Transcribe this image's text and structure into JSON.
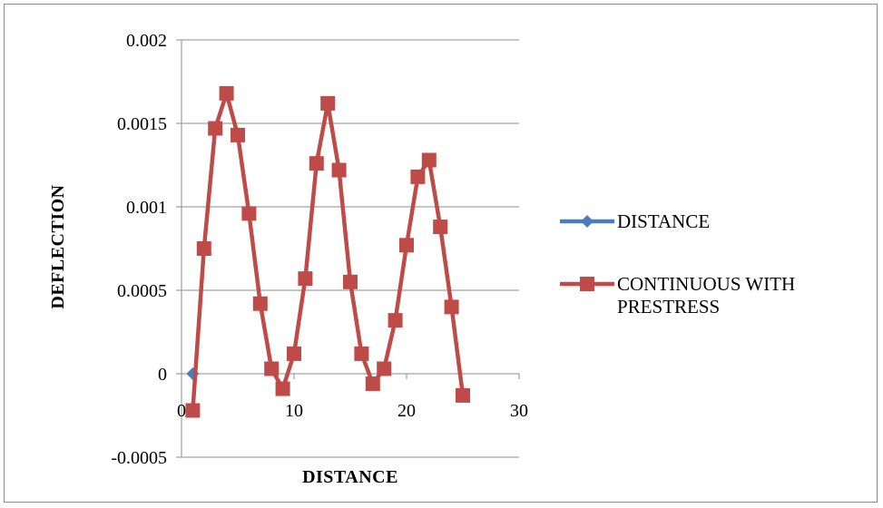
{
  "chart_data": {
    "type": "line",
    "xlabel": "DISTANCE",
    "ylabel": "DEFLECTION",
    "xlim": [
      0,
      30
    ],
    "ylim": [
      -0.0005,
      0.002
    ],
    "x_ticks": [
      "0",
      "10",
      "20",
      "30"
    ],
    "y_ticks": [
      "-0.0005",
      "0",
      "0.0005",
      "0.001",
      "0.0015",
      "0.002"
    ],
    "grid": "horizontal",
    "legend_position": "right",
    "series": [
      {
        "name": "DISTANCE",
        "color": "#4a7ebb",
        "marker": "diamond",
        "x": [
          1
        ],
        "y": [
          0
        ]
      },
      {
        "name": "CONTINUOUS WITH PRESTRESS",
        "color": "#be4b48",
        "marker": "square",
        "x": [
          1,
          2,
          3,
          4,
          5,
          6,
          7,
          8,
          9,
          10,
          11,
          12,
          13,
          14,
          15,
          16,
          17,
          18,
          19,
          20,
          21,
          22,
          23,
          24,
          25
        ],
        "y": [
          -0.00022,
          0.00075,
          0.00147,
          0.00168,
          0.00143,
          0.00096,
          0.00042,
          3e-05,
          -9e-05,
          0.00012,
          0.00057,
          0.00126,
          0.00162,
          0.00122,
          0.00055,
          0.00012,
          -6e-05,
          3e-05,
          0.00032,
          0.00077,
          0.00118,
          0.00128,
          0.00088,
          0.0004,
          -0.00013
        ]
      }
    ]
  }
}
